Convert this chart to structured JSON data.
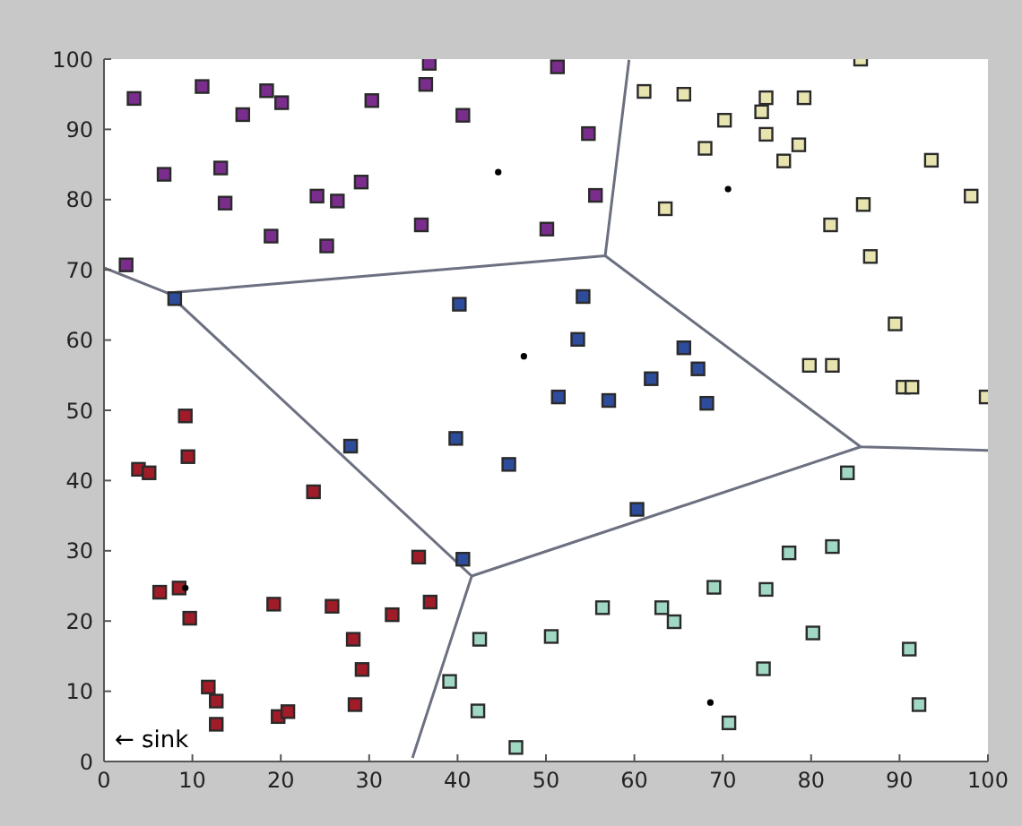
{
  "chart_data": {
    "type": "scatter",
    "marker": "square",
    "xlim": [
      0,
      100
    ],
    "ylim": [
      0,
      100
    ],
    "xticks": [
      0,
      10,
      20,
      30,
      40,
      50,
      60,
      70,
      80,
      90,
      100
    ],
    "yticks": [
      0,
      10,
      20,
      30,
      40,
      50,
      60,
      70,
      80,
      90,
      100
    ],
    "legend": false,
    "annotations": [
      "← sink"
    ],
    "series": [
      {
        "color": "#7b2d8e",
        "x": [
          3.4,
          11.1,
          18.4,
          20.1,
          15.7,
          30.3,
          36.8,
          36.4,
          40.6,
          51.3,
          6.8,
          13.2,
          13.7,
          24.1,
          26.4,
          29.1,
          18.9,
          25.2,
          35.9,
          50.1,
          2.5,
          54.8,
          55.6
        ],
        "values": [
          94.4,
          96.1,
          95.5,
          93.8,
          92.1,
          94.1,
          99.4,
          96.4,
          92.0,
          98.9,
          83.6,
          84.5,
          79.5,
          80.5,
          79.8,
          82.5,
          74.8,
          73.4,
          76.4,
          75.8,
          70.7,
          89.4,
          80.6
        ]
      },
      {
        "color": "#2e4c9c",
        "x": [
          8.0,
          40.2,
          54.2,
          53.6,
          51.4,
          65.6,
          67.2,
          61.9,
          57.1,
          68.2,
          27.9,
          39.8,
          45.8,
          40.6,
          60.3
        ],
        "values": [
          65.9,
          65.1,
          66.2,
          60.1,
          51.9,
          58.9,
          55.9,
          54.5,
          51.4,
          51.0,
          44.9,
          46.0,
          42.3,
          28.8,
          35.9
        ]
      },
      {
        "color": "#e8e4b0",
        "x": [
          85.6,
          61.1,
          65.6,
          74.9,
          79.2,
          74.4,
          70.2,
          74.9,
          78.6,
          68.0,
          76.9,
          93.6,
          98.1,
          63.5,
          85.9,
          82.2,
          86.7,
          89.5,
          79.8,
          82.4,
          90.4,
          91.4,
          99.8
        ],
        "values": [
          100,
          95.4,
          95.0,
          94.5,
          94.5,
          92.5,
          91.3,
          89.3,
          87.8,
          87.3,
          85.5,
          85.6,
          80.5,
          78.7,
          79.3,
          76.4,
          71.9,
          62.3,
          56.4,
          56.4,
          53.3,
          53.3,
          51.9
        ]
      },
      {
        "color": "#a01c28",
        "x": [
          9.2,
          3.9,
          5.1,
          9.5,
          23.7,
          35.6,
          6.3,
          8.5,
          9.7,
          19.2,
          25.8,
          32.6,
          36.9,
          28.2,
          29.2,
          11.8,
          12.7,
          12.7,
          19.7,
          20.8,
          28.4
        ],
        "values": [
          49.2,
          41.6,
          41.1,
          43.4,
          38.4,
          29.1,
          24.1,
          24.7,
          20.4,
          22.4,
          22.1,
          20.9,
          22.7,
          17.4,
          13.1,
          10.6,
          8.6,
          5.3,
          6.4,
          7.1,
          8.1
        ]
      },
      {
        "color": "#a0d8c4",
        "x": [
          42.5,
          50.6,
          39.1,
          42.3,
          46.6,
          84.1,
          77.5,
          82.4,
          69.0,
          74.9,
          56.4,
          63.1,
          64.5,
          80.2,
          91.1,
          74.6,
          92.2,
          70.7
        ],
        "values": [
          17.4,
          17.8,
          11.4,
          7.2,
          2.0,
          41.1,
          29.7,
          30.6,
          24.8,
          24.5,
          21.9,
          21.9,
          19.9,
          18.3,
          16.0,
          13.2,
          8.1,
          5.5
        ]
      },
      {
        "color": "#000000",
        "marker": "circle",
        "x": [
          44.6,
          47.5,
          70.6,
          68.6,
          9.2
        ],
        "values": [
          83.9,
          57.7,
          81.5,
          8.4,
          24.7
        ]
      },
      {
        "type": "line",
        "marker": "none",
        "color": "#6c7080",
        "x": [
          0,
          7.2,
          41.6,
          34.9
        ],
        "values": [
          70.3,
          66.7,
          26.4,
          0.5
        ]
      },
      {
        "type": "line",
        "marker": "none",
        "color": "#6c7080",
        "x": [
          7.2,
          56.7,
          59.4
        ],
        "values": [
          66.7,
          72.0,
          99.9
        ]
      },
      {
        "type": "line",
        "marker": "none",
        "color": "#6c7080",
        "x": [
          56.7,
          85.6,
          100
        ],
        "values": [
          72.0,
          44.8,
          44.3
        ]
      },
      {
        "type": "line",
        "marker": "none",
        "color": "#6c7080",
        "x": [
          85.6,
          41.6
        ],
        "values": [
          44.8,
          26.4
        ]
      }
    ]
  }
}
